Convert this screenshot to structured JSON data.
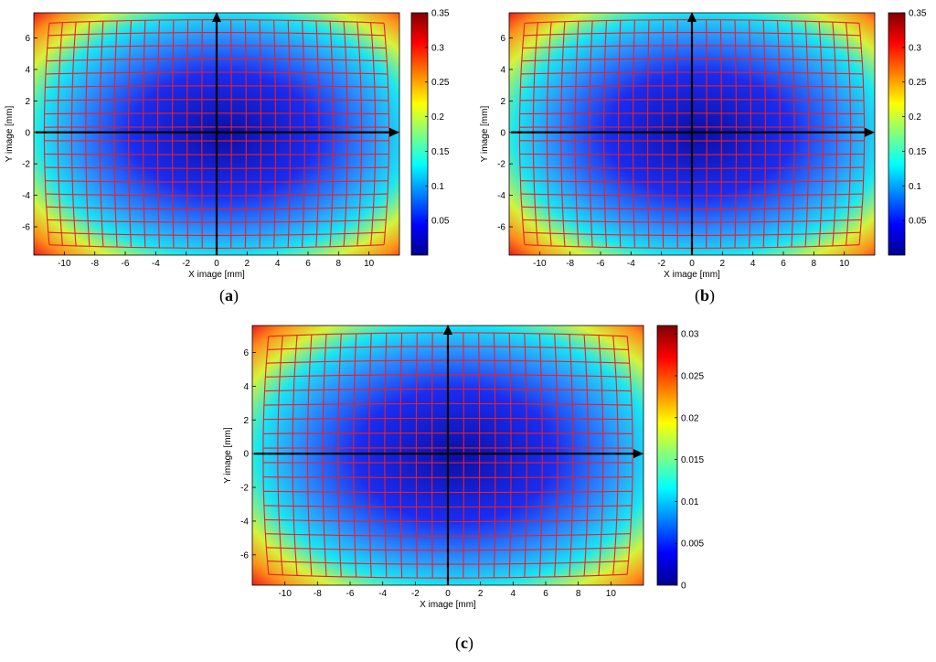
{
  "chart_data": [
    {
      "type": "heatmap",
      "panel_label": "a",
      "xlabel": "X image [mm]",
      "ylabel": "Y image [mm]",
      "xlim": [
        -12,
        12
      ],
      "ylim": [
        -7.8,
        7.6
      ],
      "x_ticks": [
        -10,
        -8,
        -6,
        -4,
        -2,
        0,
        2,
        4,
        6,
        8,
        10
      ],
      "y_ticks": [
        -6,
        -4,
        -2,
        0,
        2,
        4,
        6
      ],
      "colorbar_range": [
        0,
        0.35
      ],
      "colorbar_ticks": [
        0.05,
        0.1,
        0.15,
        0.2,
        0.25,
        0.3,
        0.35
      ],
      "colormap": "jet",
      "value_at_center": 0.0,
      "value_at_corners": 0.35,
      "grid_overlay_color": "#e8202a",
      "axes_arrows_color": "#000000"
    },
    {
      "type": "heatmap",
      "panel_label": "b",
      "xlabel": "X image [mm]",
      "ylabel": "Y image [mm]",
      "xlim": [
        -12,
        12
      ],
      "ylim": [
        -7.8,
        7.6
      ],
      "x_ticks": [
        -10,
        -8,
        -6,
        -4,
        -2,
        0,
        2,
        4,
        6,
        8,
        10
      ],
      "y_ticks": [
        -6,
        -4,
        -2,
        0,
        2,
        4,
        6
      ],
      "colorbar_range": [
        0,
        0.35
      ],
      "colorbar_ticks": [
        0.05,
        0.1,
        0.15,
        0.2,
        0.25,
        0.3,
        0.35
      ],
      "colormap": "jet",
      "value_at_center": 0.0,
      "value_at_corners": 0.35,
      "grid_overlay_color": "#e8202a",
      "axes_arrows_color": "#000000"
    },
    {
      "type": "heatmap",
      "panel_label": "c",
      "xlabel": "X image [mm]",
      "ylabel": "Y image [mm]",
      "xlim": [
        -12,
        12
      ],
      "ylim": [
        -7.8,
        7.6
      ],
      "x_ticks": [
        -10,
        -8,
        -6,
        -4,
        -2,
        0,
        2,
        4,
        6,
        8,
        10
      ],
      "y_ticks": [
        -6,
        -4,
        -2,
        0,
        2,
        4,
        6
      ],
      "colorbar_range": [
        0,
        0.031
      ],
      "colorbar_ticks": [
        0,
        0.005,
        0.01,
        0.015,
        0.02,
        0.025,
        0.03
      ],
      "colormap": "jet",
      "value_at_center": 0.0,
      "value_at_corners": 0.031,
      "grid_overlay_color": "#e8202a",
      "axes_arrows_color": "#000000"
    }
  ]
}
